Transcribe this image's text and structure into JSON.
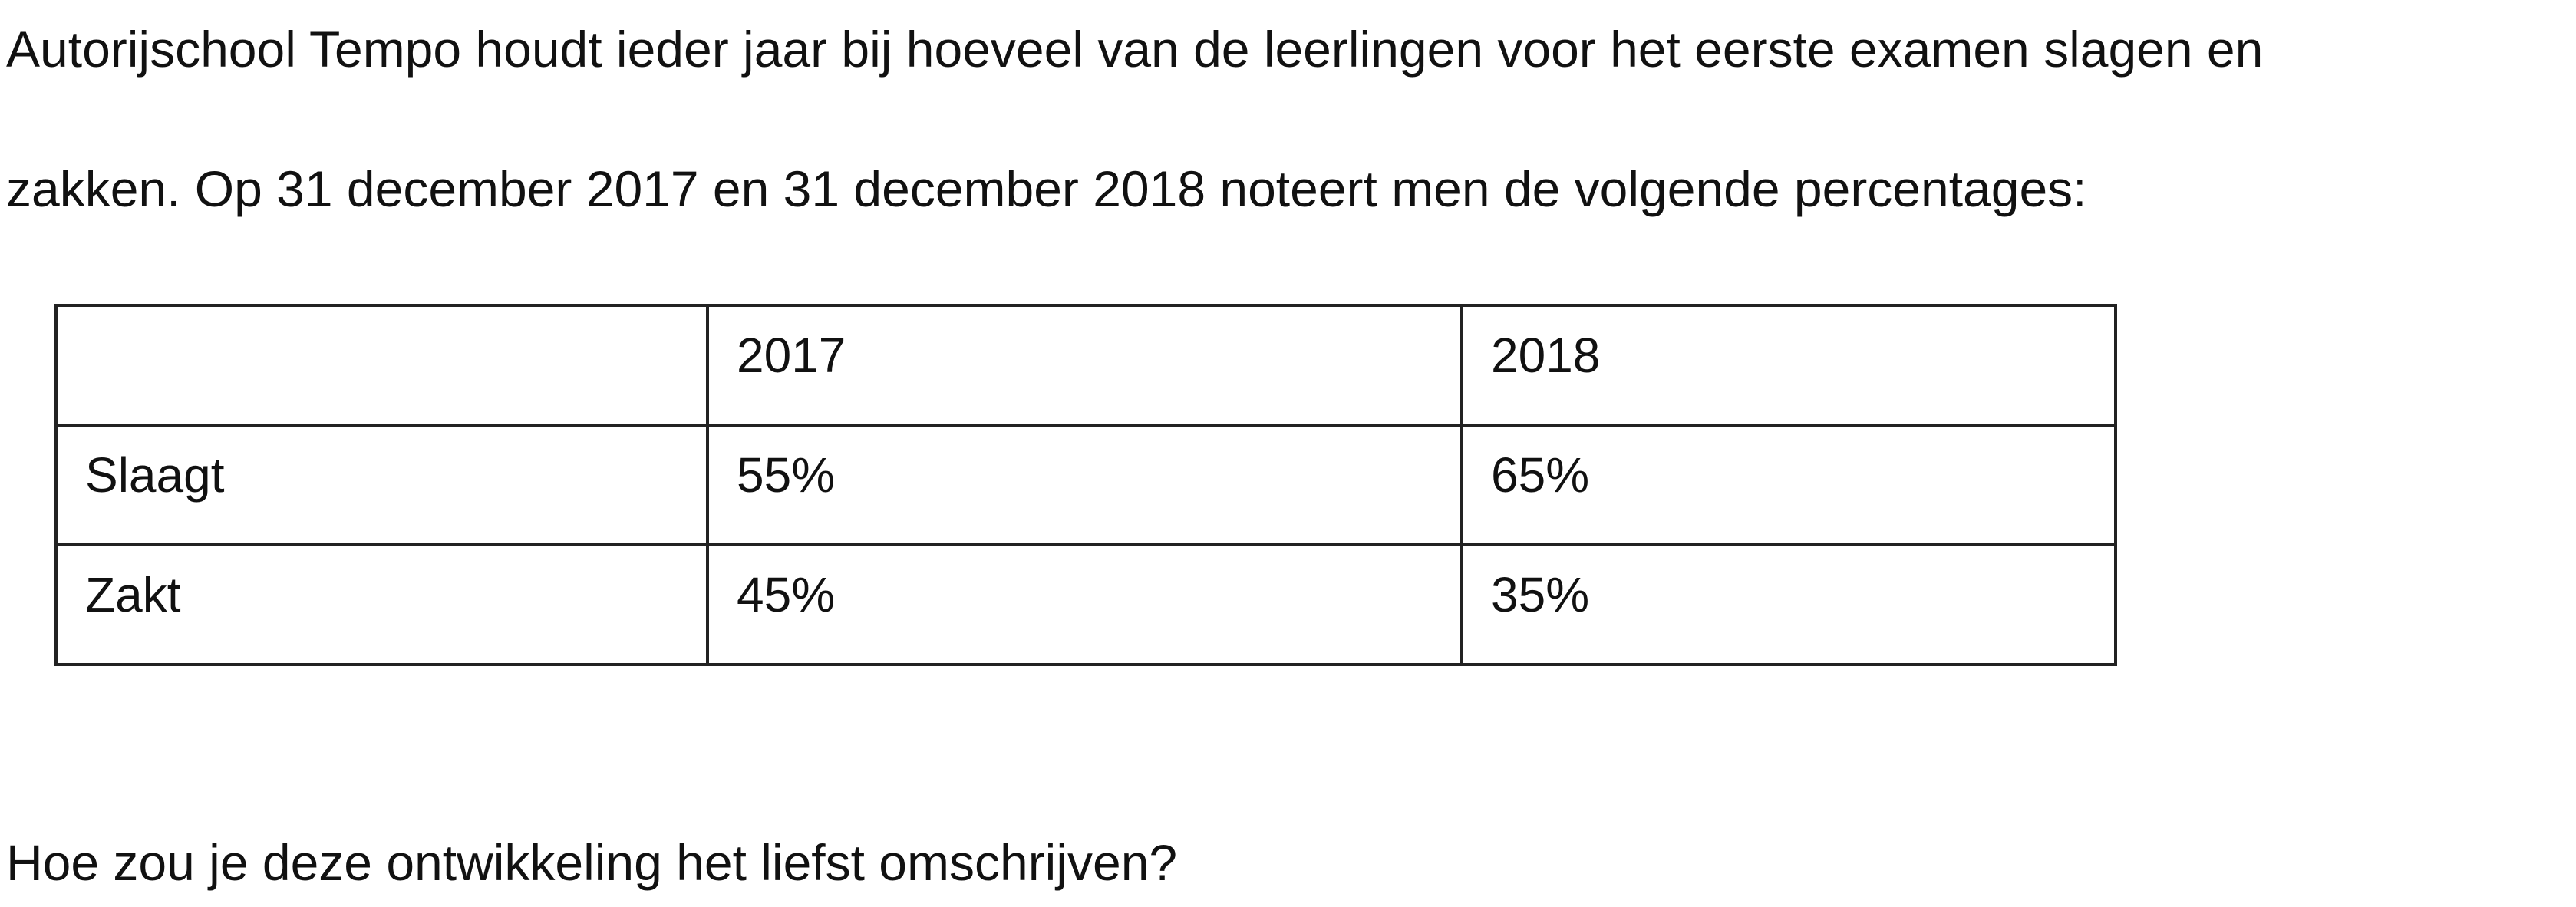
{
  "paragraphs": [
    "Autorijschool Tempo houdt ieder jaar bij hoeveel van de leerlingen voor het eerste examen slagen en",
    "zakken. Op 31 december 2017 en 31 december 2018 noteert men de volgende percentages:"
  ],
  "table": {
    "header": [
      "",
      "2017",
      "2018"
    ],
    "rows": [
      [
        "Slaagt",
        "55%",
        "65%"
      ],
      [
        "Zakt",
        "45%",
        "35%"
      ]
    ]
  },
  "question": "Hoe zou je deze ontwikkeling het liefst omschrijven?"
}
